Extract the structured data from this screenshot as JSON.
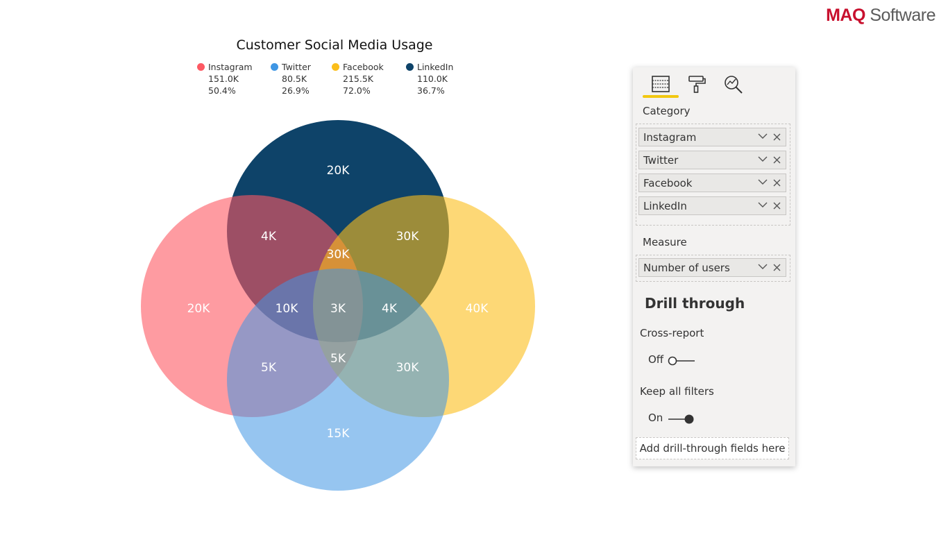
{
  "brand": {
    "part1": "MAQ",
    "part2": " Software"
  },
  "chart": {
    "title": "Customer Social Media Usage",
    "legend": [
      {
        "name": "Instagram",
        "value": "151.0K",
        "percent": "50.4%",
        "color": "#fd5963"
      },
      {
        "name": "Twitter",
        "value": "80.5K",
        "percent": "26.9%",
        "color": "#3f96e4"
      },
      {
        "name": "Facebook",
        "value": "215.5K",
        "percent": "72.0%",
        "color": "#fbbe1b"
      },
      {
        "name": "LinkedIn",
        "value": "110.0K",
        "percent": "36.7%",
        "color": "#0e4369"
      }
    ],
    "region_labels": {
      "linkedin_only": "20K",
      "instagram_linkedin": "4K",
      "facebook_linkedin": "30K",
      "instagram_facebook_linkedin": "30K",
      "instagram_only": "20K",
      "instagram_linkedin_twitter": "10K",
      "all_four": "3K",
      "facebook_linkedin_twitter": "4K",
      "facebook_only": "40K",
      "instagram_twitter": "5K",
      "instagram_facebook_twitter": "5K",
      "facebook_twitter": "30K",
      "twitter_only": "15K"
    }
  },
  "chart_data": {
    "type": "venn",
    "title": "Customer Social Media Usage",
    "sets": [
      {
        "name": "Instagram",
        "total": "151.0K",
        "percent": "50.4%",
        "color": "#fd5963"
      },
      {
        "name": "Twitter",
        "total": "80.5K",
        "percent": "26.9%",
        "color": "#3f96e4"
      },
      {
        "name": "Facebook",
        "total": "215.5K",
        "percent": "72.0%",
        "color": "#fbbe1b"
      },
      {
        "name": "LinkedIn",
        "total": "110.0K",
        "percent": "36.7%",
        "color": "#0e4369"
      }
    ],
    "regions": [
      {
        "sets": [
          "LinkedIn"
        ],
        "value": "20K"
      },
      {
        "sets": [
          "Instagram",
          "LinkedIn"
        ],
        "value": "4K"
      },
      {
        "sets": [
          "Facebook",
          "LinkedIn"
        ],
        "value": "30K"
      },
      {
        "sets": [
          "Instagram",
          "Facebook",
          "LinkedIn"
        ],
        "value": "30K"
      },
      {
        "sets": [
          "Instagram"
        ],
        "value": "20K"
      },
      {
        "sets": [
          "Instagram",
          "LinkedIn",
          "Twitter"
        ],
        "value": "10K"
      },
      {
        "sets": [
          "Instagram",
          "Twitter",
          "Facebook",
          "LinkedIn"
        ],
        "value": "3K"
      },
      {
        "sets": [
          "Facebook",
          "LinkedIn",
          "Twitter"
        ],
        "value": "4K"
      },
      {
        "sets": [
          "Facebook"
        ],
        "value": "40K"
      },
      {
        "sets": [
          "Instagram",
          "Twitter"
        ],
        "value": "5K"
      },
      {
        "sets": [
          "Instagram",
          "Facebook",
          "Twitter"
        ],
        "value": "5K"
      },
      {
        "sets": [
          "Facebook",
          "Twitter"
        ],
        "value": "30K"
      },
      {
        "sets": [
          "Twitter"
        ],
        "value": "15K"
      }
    ]
  },
  "pane": {
    "tabs": [
      {
        "name": "fields-icon"
      },
      {
        "name": "format-paintroller-icon"
      },
      {
        "name": "analytics-icon"
      }
    ],
    "category_label": "Category",
    "category_fields": [
      "Instagram",
      "Twitter",
      "Facebook",
      "LinkedIn"
    ],
    "measure_label": "Measure",
    "measure_fields": [
      "Number of users"
    ],
    "drill_title": "Drill through",
    "cross_report": {
      "label": "Cross-report",
      "state": "Off"
    },
    "keep_filters": {
      "label": "Keep all filters",
      "state": "On"
    },
    "add_drill": "Add drill-through fields here"
  }
}
